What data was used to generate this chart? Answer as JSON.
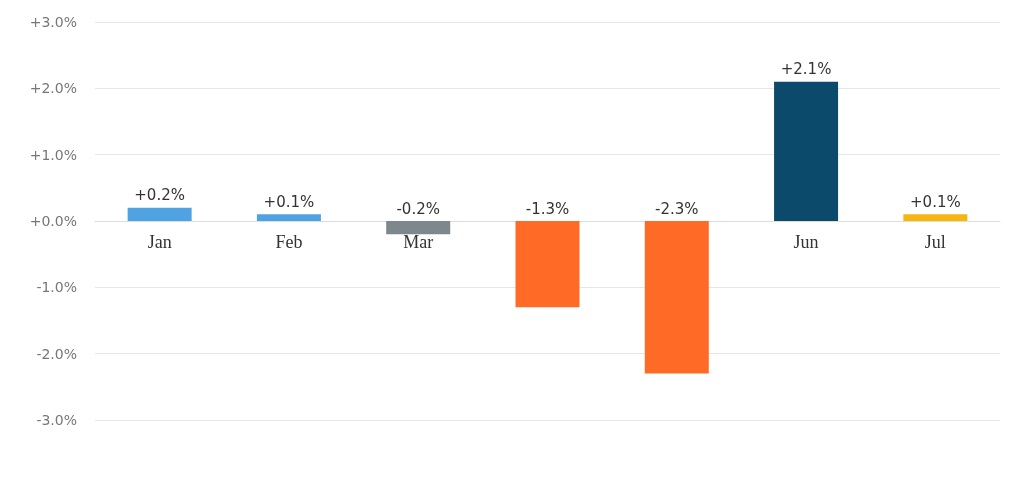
{
  "chart_data": {
    "type": "bar",
    "categories": [
      "Jan",
      "Feb",
      "Mar",
      null,
      null,
      "Jun",
      "Jul"
    ],
    "values": [
      0.2,
      0.1,
      -0.2,
      -1.3,
      -2.3,
      2.1,
      0.1
    ],
    "colors": [
      "#4fa3e3",
      "#4fa3e3",
      "#7d878c",
      "#ff6a26",
      "#ff6a26",
      "#0b4a6b",
      "#f7b512"
    ],
    "value_labels": [
      "+0.2%",
      "+0.1%",
      "-0.2%",
      "-1.3%",
      "-2.3%",
      "+2.1%",
      "+0.1%"
    ],
    "ylim": [
      -3,
      3
    ],
    "yticks": [
      {
        "value": -3,
        "label": "-3.0%"
      },
      {
        "value": -2,
        "label": "-2.0%"
      },
      {
        "value": -1,
        "label": "-1.0%"
      },
      {
        "value": 0,
        "label": "+0.0%"
      },
      {
        "value": 1,
        "label": "+1.0%"
      },
      {
        "value": 2,
        "label": "+2.0%"
      },
      {
        "value": 3,
        "label": "+3.0%"
      }
    ],
    "grid": "y"
  }
}
